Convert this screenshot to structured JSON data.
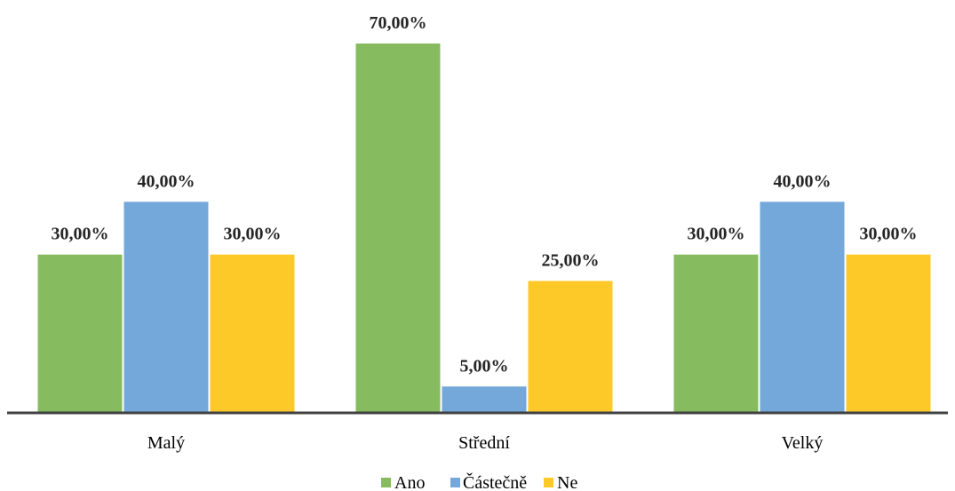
{
  "chart_data": {
    "type": "bar",
    "categories": [
      "Malý",
      "Střední",
      "Velký"
    ],
    "series": [
      {
        "name": "Ano",
        "color": "#86BC5F",
        "values": [
          30,
          70,
          30
        ],
        "labels": [
          "30,00%",
          "70,00%",
          "30,00%"
        ]
      },
      {
        "name": "Částečně",
        "color": "#74A8DA",
        "values": [
          40,
          5,
          40
        ],
        "labels": [
          "40,00%",
          "5,00%",
          "40,00%"
        ]
      },
      {
        "name": "Ne",
        "color": "#FDC928",
        "values": [
          30,
          25,
          30
        ],
        "labels": [
          "30,00%",
          "25,00%",
          "30,00%"
        ]
      }
    ],
    "ylim": [
      0,
      70
    ],
    "grid": false,
    "legend": "bottom-center"
  }
}
